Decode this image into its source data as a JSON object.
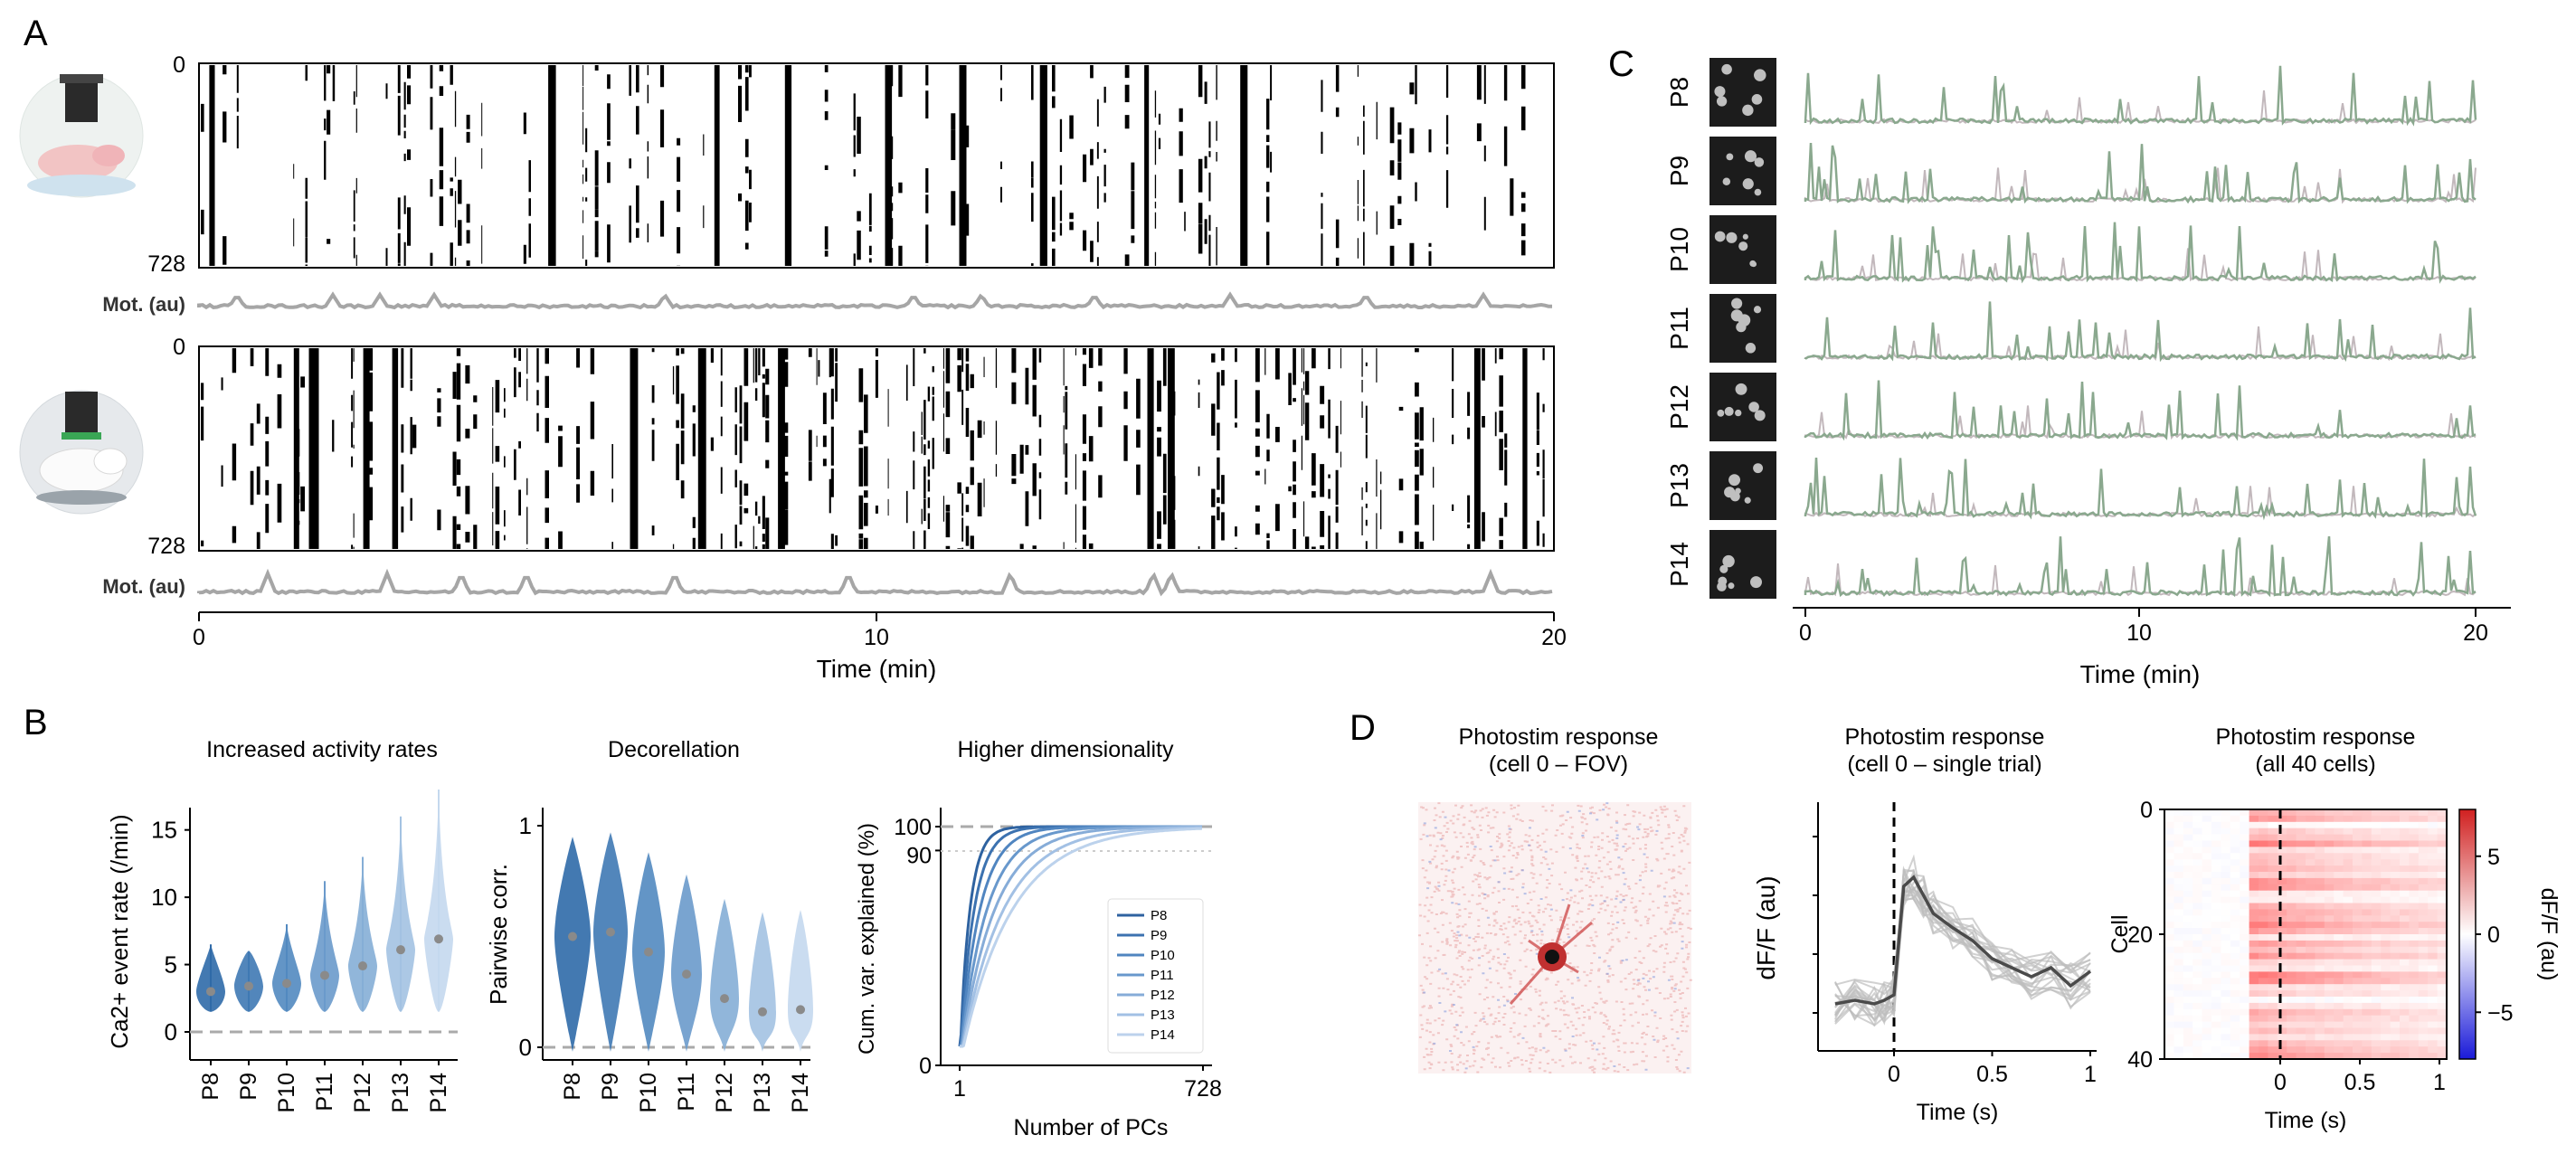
{
  "panels": {
    "A": {
      "label": "A",
      "raster_top": {
        "y_start": "0",
        "y_end": "728"
      },
      "raster_bottom": {
        "y_start": "0",
        "y_end": "728"
      },
      "motion_label": "Mot. (au)",
      "x_ticks": [
        "0",
        "10",
        "20"
      ],
      "x_label": "Time (min)"
    },
    "B": {
      "label": "B",
      "subtitle_1": "Increased activity rates",
      "subtitle_2": "Decorellation",
      "subtitle_3": "Higher dimensionality"
    },
    "C": {
      "label": "C",
      "rows": [
        "P8",
        "P9",
        "P10",
        "P11",
        "P12",
        "P13",
        "P14"
      ],
      "x_ticks": [
        "0",
        "10",
        "20"
      ],
      "x_label": "Time (min)"
    },
    "D": {
      "label": "D",
      "fov_title_1": "Photostim response",
      "fov_title_2": "(cell 0 – FOV)",
      "trial_title_1": "Photostim response",
      "trial_title_2": "(cell 0 – single trial)",
      "heat_title_1": "Photostim response",
      "heat_title_2": "(all 40 cells)"
    }
  },
  "colors": {
    "raster": "#000000",
    "motion": "#a6a6a6",
    "trace_green": "#8aa88e",
    "trace_gray": "#c2b8bc",
    "violin_dark": "#2f6aa8",
    "violin_light": "#c9dcee",
    "heat_pos": "#d93a3a",
    "heat_neg": "#2020e0"
  },
  "chart_data": [
    {
      "type": "scatter",
      "title": "Increased activity rates",
      "ylabel": "Ca2+ event rate (/min)",
      "categories": [
        "P8",
        "P9",
        "P10",
        "P11",
        "P12",
        "P13",
        "P14"
      ],
      "y_ticks": [
        "0",
        "5",
        "10",
        "15"
      ],
      "ylim": [
        -1,
        18
      ],
      "values": [
        3.0,
        3.4,
        3.6,
        4.2,
        4.9,
        6.1,
        6.9
      ],
      "max": [
        6.5,
        6.0,
        8.0,
        11.2,
        13.0,
        16.0,
        18.0
      ]
    },
    {
      "type": "scatter",
      "title": "Decorellation",
      "ylabel": "Pairwise corr.",
      "categories": [
        "P8",
        "P9",
        "P10",
        "P11",
        "P12",
        "P13",
        "P14"
      ],
      "y_ticks": [
        "0",
        "1"
      ],
      "ylim": [
        -0.05,
        1.05
      ],
      "values": [
        0.5,
        0.52,
        0.43,
        0.33,
        0.22,
        0.16,
        0.17
      ]
    },
    {
      "type": "line",
      "title": "Higher dimensionality",
      "ylabel": "Cum. var. explained (%)",
      "xlabel": "Number of PCs",
      "x_ticks": [
        "1",
        "728"
      ],
      "y_ticks": [
        "0",
        "90",
        "100"
      ],
      "xlim": [
        1,
        728
      ],
      "ylim": [
        0,
        100
      ],
      "series": [
        {
          "name": "P8",
          "k": 30
        },
        {
          "name": "P9",
          "k": 42
        },
        {
          "name": "P10",
          "k": 58
        },
        {
          "name": "P11",
          "k": 78
        },
        {
          "name": "P12",
          "k": 100
        },
        {
          "name": "P13",
          "k": 125
        },
        {
          "name": "P14",
          "k": 150
        }
      ]
    },
    {
      "type": "line",
      "title": "Photostim response (cell 0 – single trial)",
      "ylabel": "dF/F (au)",
      "xlabel": "Time (s)",
      "x_ticks": [
        "0",
        "0.5",
        "1"
      ],
      "xlim": [
        -0.35,
        1.02
      ],
      "x": [
        -0.3,
        -0.2,
        -0.1,
        -0.05,
        0,
        0.05,
        0.1,
        0.15,
        0.2,
        0.3,
        0.4,
        0.5,
        0.6,
        0.7,
        0.8,
        0.9,
        1.0
      ],
      "y": [
        0.1,
        0.12,
        0.1,
        0.12,
        0.15,
        0.75,
        0.8,
        0.7,
        0.6,
        0.52,
        0.45,
        0.35,
        0.3,
        0.25,
        0.3,
        0.2,
        0.28
      ]
    },
    {
      "type": "heatmap",
      "title": "Photostim response (all 40 cells)",
      "ylabel": "Cell",
      "xlabel": "Time (s)",
      "x_ticks": [
        "0",
        "0.5",
        "1"
      ],
      "y_ticks": [
        "0",
        "20",
        "40"
      ],
      "colorbar_ticks": [
        "5",
        "0",
        "−5"
      ],
      "colorbar_label": "dF/F (au)",
      "xlim": [
        -0.35,
        1.02
      ],
      "ylim": [
        0,
        40
      ],
      "clim": [
        -8,
        8
      ]
    }
  ]
}
